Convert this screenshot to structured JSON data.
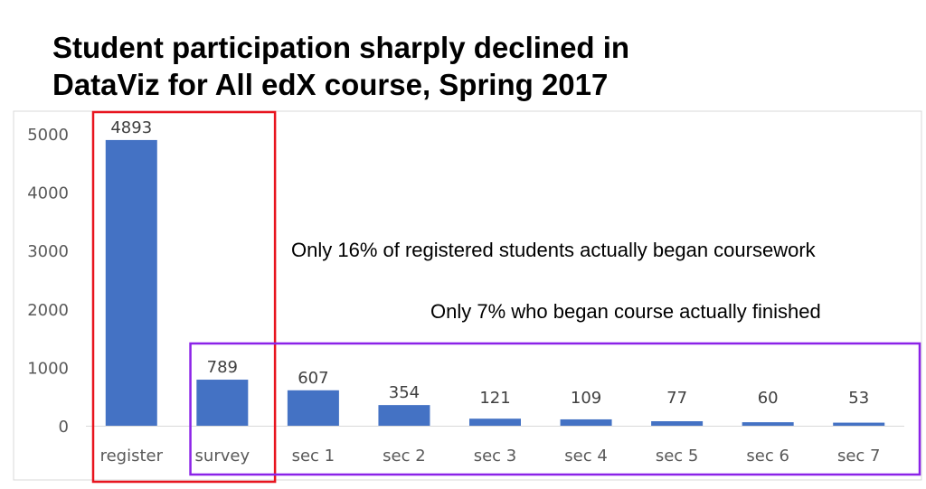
{
  "title_lines": [
    "Student participation sharply declined in",
    "DataViz for All edX course, Spring 2017"
  ],
  "annotations": [
    "Only 16% of registered students actually began coursework",
    "Only 7% who began course actually finished"
  ],
  "colors": {
    "bar": "#4472C4",
    "red_box": "#E8141E",
    "purple_box": "#8B22E8"
  },
  "chart_data": {
    "type": "bar",
    "title": "Student participation sharply declined in DataViz for All edX course, Spring 2017",
    "categories": [
      "register",
      "survey",
      "sec 1",
      "sec 2",
      "sec 3",
      "sec 4",
      "sec 5",
      "sec 6",
      "sec 7"
    ],
    "values": [
      4893,
      789,
      607,
      354,
      121,
      109,
      77,
      60,
      53
    ],
    "data_labels": [
      "4893",
      "789",
      "607",
      "354",
      "121",
      "109",
      "77",
      "60",
      "53"
    ],
    "y_ticks": [
      "0",
      "1000",
      "2000",
      "3000",
      "4000",
      "5000"
    ],
    "ylim": [
      0,
      5000
    ],
    "xlabel": "",
    "ylabel": "",
    "grid": false,
    "legend": "none",
    "highlight_groups": [
      {
        "color": "red",
        "categories": [
          "register",
          "survey"
        ]
      },
      {
        "color": "purple",
        "categories": [
          "survey",
          "sec 1",
          "sec 2",
          "sec 3",
          "sec 4",
          "sec 5",
          "sec 6",
          "sec 7"
        ]
      }
    ]
  }
}
